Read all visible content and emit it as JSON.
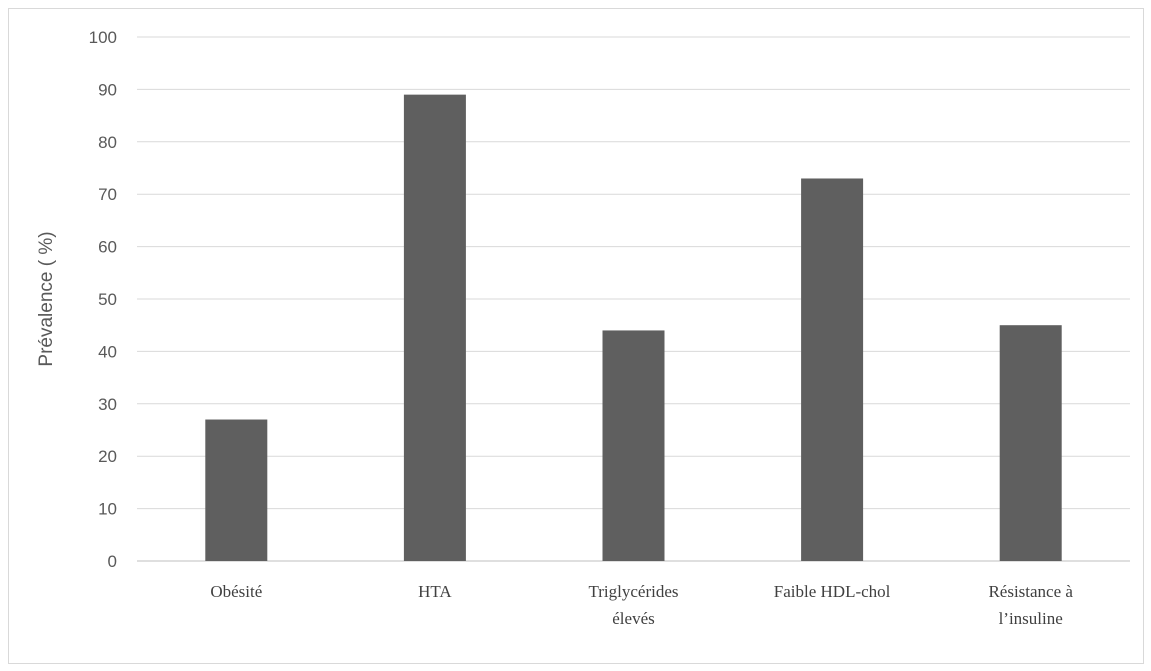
{
  "chart_data": {
    "type": "bar",
    "categories": [
      [
        "Obésité"
      ],
      [
        "HTA"
      ],
      [
        "Triglycérides",
        "élevés"
      ],
      [
        "Faible HDL-chol"
      ],
      [
        "Résistance à",
        "l’insuline"
      ]
    ],
    "values": [
      27,
      89,
      44,
      73,
      45
    ],
    "title": "",
    "xlabel": "",
    "ylabel": "Prévalence ( %)",
    "ylim": [
      0,
      100
    ],
    "yticks": [
      0,
      10,
      20,
      30,
      40,
      50,
      60,
      70,
      80,
      90,
      100
    ],
    "grid": true,
    "colors": {
      "bar": "#5f5f5f",
      "grid": "#d9d9d9",
      "axis": "#bfbfbf"
    }
  }
}
